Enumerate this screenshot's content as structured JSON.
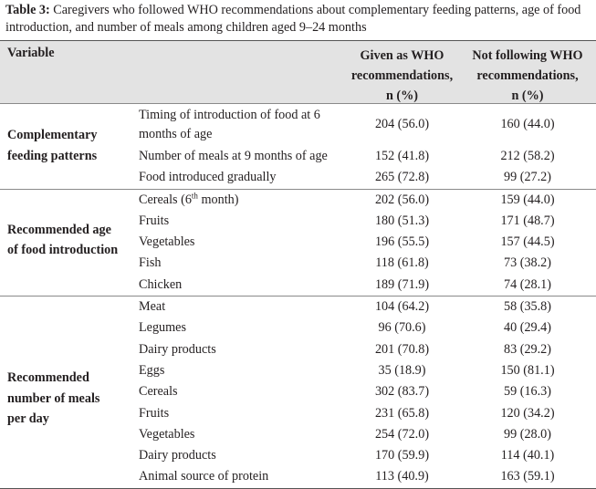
{
  "caption": {
    "label": "Table 3:",
    "text": " Caregivers who followed WHO recommendations about complementary feeding patterns, age of food introduction, and number of meals among children aged 9–24 months"
  },
  "header": {
    "variable": "Variable",
    "col1": [
      "Given as WHO",
      "recommendations,",
      "n (%)"
    ],
    "col2": [
      "Not following WHO",
      "recommendations,",
      "n (%)"
    ]
  },
  "groups": [
    {
      "name": [
        "Complementary",
        "feeding patterns"
      ],
      "rows": [
        {
          "label": "Timing of introduction of food at 6 months of age",
          "given": "204 (56.0)",
          "not": "160 (44.0)"
        },
        {
          "label": "Number of meals at 9 months of age",
          "given": "152 (41.8)",
          "not": "212 (58.2)"
        },
        {
          "label": "Food introduced gradually",
          "given": "265 (72.8)",
          "not": "99 (27.2)"
        }
      ]
    },
    {
      "name": [
        "Recommended age",
        "of food introduction"
      ],
      "rows": [
        {
          "label": "Cereals (6",
          "sup": "th",
          "label_after": " month)",
          "given": "202 (56.0)",
          "not": "159 (44.0)"
        },
        {
          "label": "Fruits",
          "given": "180 (51.3)",
          "not": "171 (48.7)"
        },
        {
          "label": "Vegetables",
          "given": "196 (55.5)",
          "not": "157 (44.5)"
        },
        {
          "label": "Fish",
          "given": "118 (61.8)",
          "not": "73 (38.2)"
        },
        {
          "label": "Chicken",
          "given": "189 (71.9)",
          "not": "74 (28.1)"
        }
      ]
    },
    {
      "name": [
        "Recommended",
        "number of meals",
        "per day"
      ],
      "rows": [
        {
          "label": "Meat",
          "given": "104 (64.2)",
          "not": "58 (35.8)"
        },
        {
          "label": "Legumes",
          "given": "96 (70.6)",
          "not": "40 (29.4)"
        },
        {
          "label": "Dairy products",
          "given": "201 (70.8)",
          "not": "83 (29.2)"
        },
        {
          "label": "Eggs",
          "given": "35 (18.9)",
          "not": "150 (81.1)"
        },
        {
          "label": "Cereals",
          "given": "302 (83.7)",
          "not": "59 (16.3)"
        },
        {
          "label": "Fruits",
          "given": "231 (65.8)",
          "not": "120 (34.2)"
        },
        {
          "label": "Vegetables",
          "given": "254 (72.0)",
          "not": "99 (28.0)"
        },
        {
          "label": "Dairy products",
          "given": "170 (59.9)",
          "not": "114 (40.1)"
        },
        {
          "label": "Animal source of protein",
          "given": "113 (40.9)",
          "not": "163 (59.1)"
        }
      ]
    }
  ]
}
